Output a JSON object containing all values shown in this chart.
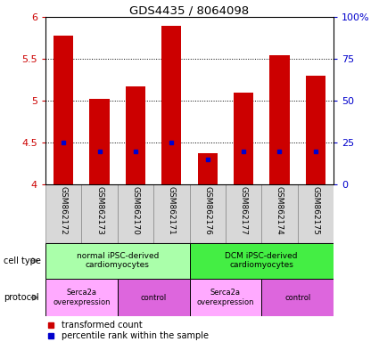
{
  "title": "GDS4435 / 8064098",
  "samples": [
    "GSM862172",
    "GSM862173",
    "GSM862170",
    "GSM862171",
    "GSM862176",
    "GSM862177",
    "GSM862174",
    "GSM862175"
  ],
  "transformed_counts": [
    5.78,
    5.02,
    5.17,
    5.9,
    4.38,
    5.1,
    5.55,
    5.3
  ],
  "percentile_ranks": [
    25,
    20,
    20,
    25,
    15,
    20,
    20,
    20
  ],
  "bar_bottom": 4.0,
  "ylim": [
    4.0,
    6.0
  ],
  "right_yticks": [
    0,
    25,
    50,
    75,
    100
  ],
  "right_yticklabels": [
    "0",
    "25",
    "50",
    "75",
    "100%"
  ],
  "left_yticks": [
    4.0,
    4.5,
    5.0,
    5.5,
    6.0
  ],
  "left_yticklabels": [
    "4",
    "4.5",
    "5",
    "5.5",
    "6"
  ],
  "bar_color": "#cc0000",
  "percentile_color": "#0000cc",
  "cell_type_groups": [
    {
      "label": "normal iPSC-derived\ncardiomyocytes",
      "start": 0,
      "end": 4,
      "color": "#aaffaa"
    },
    {
      "label": "DCM iPSC-derived\ncardiomyocytes",
      "start": 4,
      "end": 8,
      "color": "#44ee44"
    }
  ],
  "protocol_groups": [
    {
      "label": "Serca2a\noverexpression",
      "start": 0,
      "end": 2,
      "color": "#ffaaff"
    },
    {
      "label": "control",
      "start": 2,
      "end": 4,
      "color": "#dd66dd"
    },
    {
      "label": "Serca2a\noverexpression",
      "start": 4,
      "end": 6,
      "color": "#ffaaff"
    },
    {
      "label": "control",
      "start": 6,
      "end": 8,
      "color": "#dd66dd"
    }
  ],
  "cell_type_label": "cell type",
  "protocol_label": "protocol",
  "legend_red_label": "transformed count",
  "legend_blue_label": "percentile rank within the sample",
  "tick_color_left": "#cc0000",
  "tick_color_right": "#0000cc",
  "arrow_color": "#888888"
}
